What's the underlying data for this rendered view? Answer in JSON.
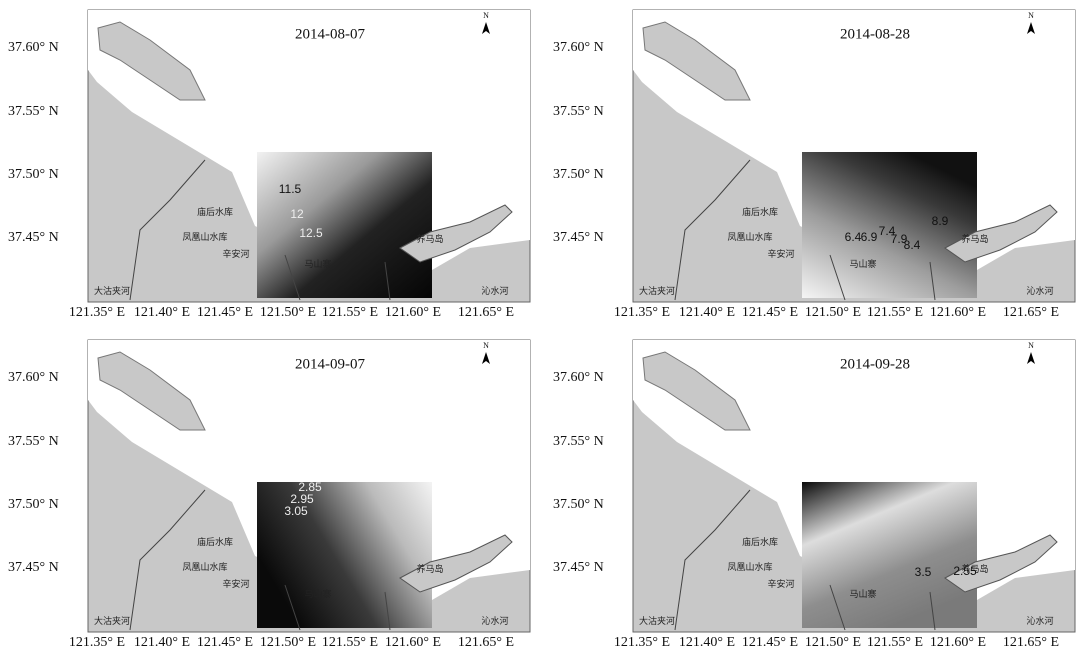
{
  "lat_labels": [
    "37.60° N",
    "37.55° N",
    "37.50° N",
    "37.45° N"
  ],
  "lon_labels": [
    "121.35° E",
    "121.40° E",
    "121.45° E",
    "121.50° E",
    "121.55° E",
    "121.60° E",
    "121.65° E"
  ],
  "north": "N",
  "place_names": [
    "庙后水库",
    "凤凰山水库",
    "养马岛",
    "马山寨",
    "辛安河",
    "沁水河",
    "大沽夹河"
  ],
  "panels": [
    {
      "title": "2014-08-07",
      "contour_labels": [
        "11.5",
        "12",
        "12.5"
      ]
    },
    {
      "title": "2014-08-28",
      "contour_labels": [
        "6.4",
        "6.9",
        "7.4",
        "7.9",
        "8.4",
        "8.9"
      ]
    },
    {
      "title": "2014-09-07",
      "contour_labels": [
        "2.85",
        "2.95",
        "3.05"
      ]
    },
    {
      "title": "2014-09-28",
      "contour_labels": [
        "3.5",
        "2.55"
      ]
    }
  ]
}
